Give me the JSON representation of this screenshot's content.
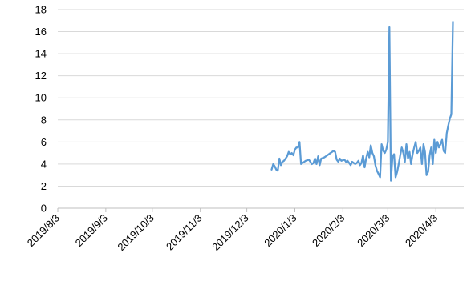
{
  "chart_data": {
    "type": "line",
    "title": "",
    "xlabel": "",
    "ylabel": "",
    "ylim": [
      0,
      18
    ],
    "xlim": [
      "2019-08-03",
      "2020-04-21"
    ],
    "y_ticks": [
      "0",
      "2",
      "4",
      "6",
      "8",
      "10",
      "12",
      "14",
      "16",
      "18"
    ],
    "x_ticks": [
      {
        "date": "2019-08-03",
        "label": "2019/8/3"
      },
      {
        "date": "2019-09-03",
        "label": "2019/9/3"
      },
      {
        "date": "2019-10-03",
        "label": "2019/10/3"
      },
      {
        "date": "2019-11-03",
        "label": "2019/11/3"
      },
      {
        "date": "2019-12-03",
        "label": "2019/12/3"
      },
      {
        "date": "2020-01-03",
        "label": "2020/1/3"
      },
      {
        "date": "2020-02-03",
        "label": "2020/2/3"
      },
      {
        "date": "2020-03-03",
        "label": "2020/3/3"
      },
      {
        "date": "2020-04-03",
        "label": "2020/4/3"
      }
    ],
    "grid": "horizontal",
    "line_color": "#5b9bd5",
    "series": [
      {
        "points": [
          [
            "2019-12-19",
            3.5
          ],
          [
            "2019-12-20",
            4.0
          ],
          [
            "2019-12-21",
            3.8
          ],
          [
            "2019-12-22",
            3.5
          ],
          [
            "2019-12-23",
            3.4
          ],
          [
            "2019-12-24",
            4.5
          ],
          [
            "2019-12-25",
            3.9
          ],
          [
            "2019-12-26",
            4.2
          ],
          [
            "2019-12-27",
            4.3
          ],
          [
            "2019-12-28",
            4.5
          ],
          [
            "2019-12-29",
            4.7
          ],
          [
            "2019-12-30",
            5.1
          ],
          [
            "2019-12-31",
            4.9
          ],
          [
            "2020-01-01",
            5.0
          ],
          [
            "2020-01-02",
            4.8
          ],
          [
            "2020-01-03",
            5.3
          ],
          [
            "2020-01-04",
            5.5
          ],
          [
            "2020-01-05",
            5.5
          ],
          [
            "2020-01-06",
            6.0
          ],
          [
            "2020-01-07",
            4.0
          ],
          [
            "2020-01-08",
            4.1
          ],
          [
            "2020-01-10",
            4.3
          ],
          [
            "2020-01-12",
            4.4
          ],
          [
            "2020-01-14",
            4.0
          ],
          [
            "2020-01-15",
            4.1
          ],
          [
            "2020-01-16",
            4.5
          ],
          [
            "2020-01-17",
            4.0
          ],
          [
            "2020-01-18",
            4.7
          ],
          [
            "2020-01-19",
            3.9
          ],
          [
            "2020-01-20",
            4.5
          ],
          [
            "2020-01-22",
            4.6
          ],
          [
            "2020-01-24",
            4.8
          ],
          [
            "2020-01-26",
            5.0
          ],
          [
            "2020-01-28",
            5.2
          ],
          [
            "2020-01-29",
            5.1
          ],
          [
            "2020-01-30",
            4.4
          ],
          [
            "2020-01-31",
            4.2
          ],
          [
            "2020-02-01",
            4.5
          ],
          [
            "2020-02-02",
            4.3
          ],
          [
            "2020-02-04",
            4.4
          ],
          [
            "2020-02-05",
            4.2
          ],
          [
            "2020-02-06",
            4.3
          ],
          [
            "2020-02-07",
            4.1
          ],
          [
            "2020-02-08",
            3.9
          ],
          [
            "2020-02-09",
            4.2
          ],
          [
            "2020-02-11",
            4.0
          ],
          [
            "2020-02-12",
            4.1
          ],
          [
            "2020-02-13",
            4.3
          ],
          [
            "2020-02-14",
            3.9
          ],
          [
            "2020-02-15",
            4.1
          ],
          [
            "2020-02-16",
            4.8
          ],
          [
            "2020-02-17",
            3.7
          ],
          [
            "2020-02-18",
            4.5
          ],
          [
            "2020-02-19",
            5.1
          ],
          [
            "2020-02-20",
            4.6
          ],
          [
            "2020-02-21",
            5.7
          ],
          [
            "2020-02-22",
            5.0
          ],
          [
            "2020-02-23",
            4.7
          ],
          [
            "2020-02-24",
            3.9
          ],
          [
            "2020-02-25",
            3.4
          ],
          [
            "2020-02-26",
            3.1
          ],
          [
            "2020-02-27",
            2.8
          ],
          [
            "2020-02-28",
            5.8
          ],
          [
            "2020-02-29",
            5.2
          ],
          [
            "2020-03-01",
            5.0
          ],
          [
            "2020-03-02",
            5.3
          ],
          [
            "2020-03-03",
            6.0
          ],
          [
            "2020-03-04",
            16.4
          ],
          [
            "2020-03-05",
            2.5
          ],
          [
            "2020-03-06",
            4.7
          ],
          [
            "2020-03-07",
            4.9
          ],
          [
            "2020-03-08",
            2.8
          ],
          [
            "2020-03-09",
            3.3
          ],
          [
            "2020-03-10",
            4.0
          ],
          [
            "2020-03-11",
            4.8
          ],
          [
            "2020-03-12",
            5.5
          ],
          [
            "2020-03-13",
            5.0
          ],
          [
            "2020-03-14",
            4.2
          ],
          [
            "2020-03-15",
            5.8
          ],
          [
            "2020-03-16",
            4.5
          ],
          [
            "2020-03-17",
            5.1
          ],
          [
            "2020-03-18",
            4.0
          ],
          [
            "2020-03-19",
            4.9
          ],
          [
            "2020-03-20",
            5.5
          ],
          [
            "2020-03-21",
            6.0
          ],
          [
            "2020-03-22",
            5.0
          ],
          [
            "2020-03-23",
            5.2
          ],
          [
            "2020-03-24",
            5.5
          ],
          [
            "2020-03-25",
            4.0
          ],
          [
            "2020-03-26",
            5.8
          ],
          [
            "2020-03-27",
            5.1
          ],
          [
            "2020-03-28",
            3.0
          ],
          [
            "2020-03-29",
            3.3
          ],
          [
            "2020-03-30",
            4.8
          ],
          [
            "2020-03-31",
            5.5
          ],
          [
            "2020-04-01",
            4.0
          ],
          [
            "2020-04-02",
            6.2
          ],
          [
            "2020-04-03",
            5.0
          ],
          [
            "2020-04-04",
            6.0
          ],
          [
            "2020-04-05",
            5.5
          ],
          [
            "2020-04-06",
            5.8
          ],
          [
            "2020-04-07",
            6.2
          ],
          [
            "2020-04-08",
            5.2
          ],
          [
            "2020-04-09",
            5.0
          ],
          [
            "2020-04-10",
            6.8
          ],
          [
            "2020-04-11",
            7.5
          ],
          [
            "2020-04-12",
            8.1
          ],
          [
            "2020-04-13",
            8.5
          ],
          [
            "2020-04-14",
            16.9
          ]
        ]
      }
    ]
  }
}
